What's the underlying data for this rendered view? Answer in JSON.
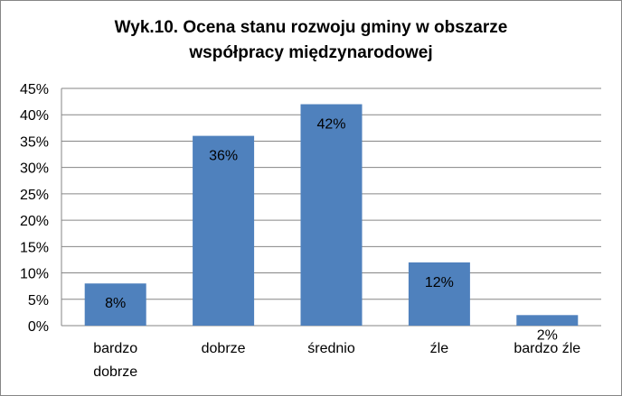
{
  "chart_data": {
    "type": "bar",
    "title_line1": "Wyk.10. Ocena stanu rozwoju gminy w obszarze",
    "title_line2": "współpracy międzynarodowej",
    "categories": [
      "bardzo\ndobrze",
      "dobrze",
      "średnio",
      "źle",
      "bardzo źle"
    ],
    "values": [
      8,
      36,
      42,
      12,
      2
    ],
    "data_labels": [
      "8%",
      "36%",
      "42%",
      "12%",
      "2%"
    ],
    "yticks": [
      "0%",
      "5%",
      "10%",
      "15%",
      "20%",
      "25%",
      "30%",
      "35%",
      "40%",
      "45%"
    ],
    "ylim": [
      0,
      45
    ],
    "ystep": 5,
    "grid": true,
    "legend": "none",
    "bar_color": "#4f81bd",
    "grid_color": "#868686"
  }
}
